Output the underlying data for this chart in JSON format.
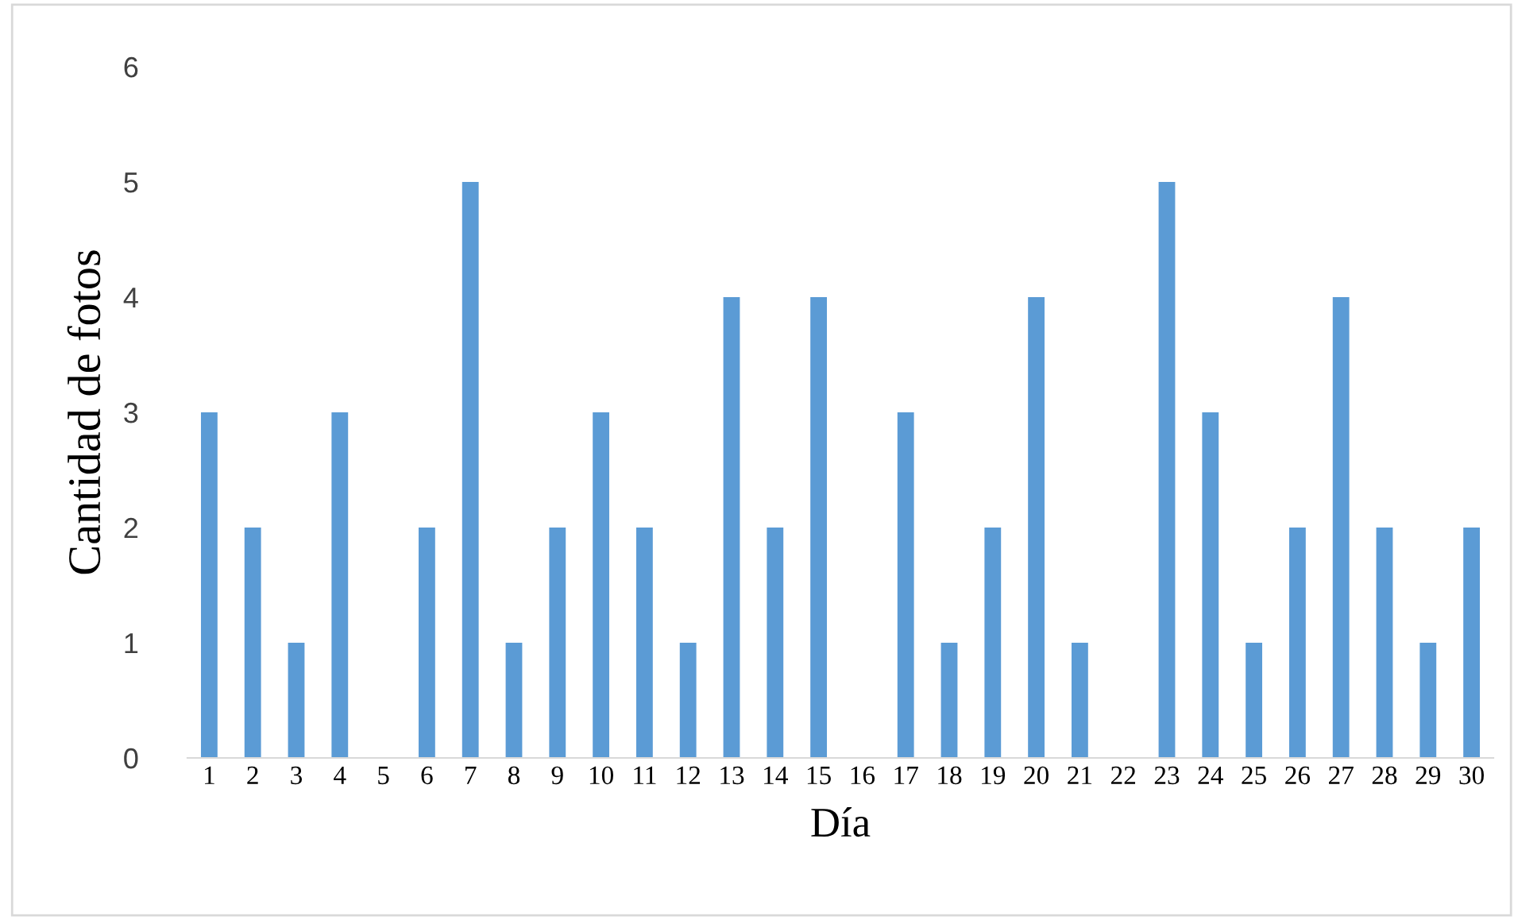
{
  "chart_data": {
    "type": "bar",
    "xlabel": "Día",
    "ylabel": "Cantidad de fotos",
    "categories": [
      "1",
      "2",
      "3",
      "4",
      "5",
      "6",
      "7",
      "8",
      "9",
      "10",
      "11",
      "12",
      "13",
      "14",
      "15",
      "16",
      "17",
      "18",
      "19",
      "20",
      "21",
      "22",
      "23",
      "24",
      "25",
      "26",
      "27",
      "28",
      "29",
      "30"
    ],
    "values": [
      3,
      2,
      1,
      3,
      0,
      2,
      5,
      1,
      2,
      3,
      2,
      1,
      4,
      2,
      4,
      0,
      3,
      1,
      2,
      4,
      1,
      0,
      5,
      3,
      1,
      2,
      4,
      2,
      1,
      2
    ],
    "color": "#5b9bd5",
    "ylim": [
      0,
      6
    ],
    "yticks": [
      0,
      1,
      2,
      3,
      4,
      5,
      6
    ],
    "grid": false,
    "legend": false
  }
}
